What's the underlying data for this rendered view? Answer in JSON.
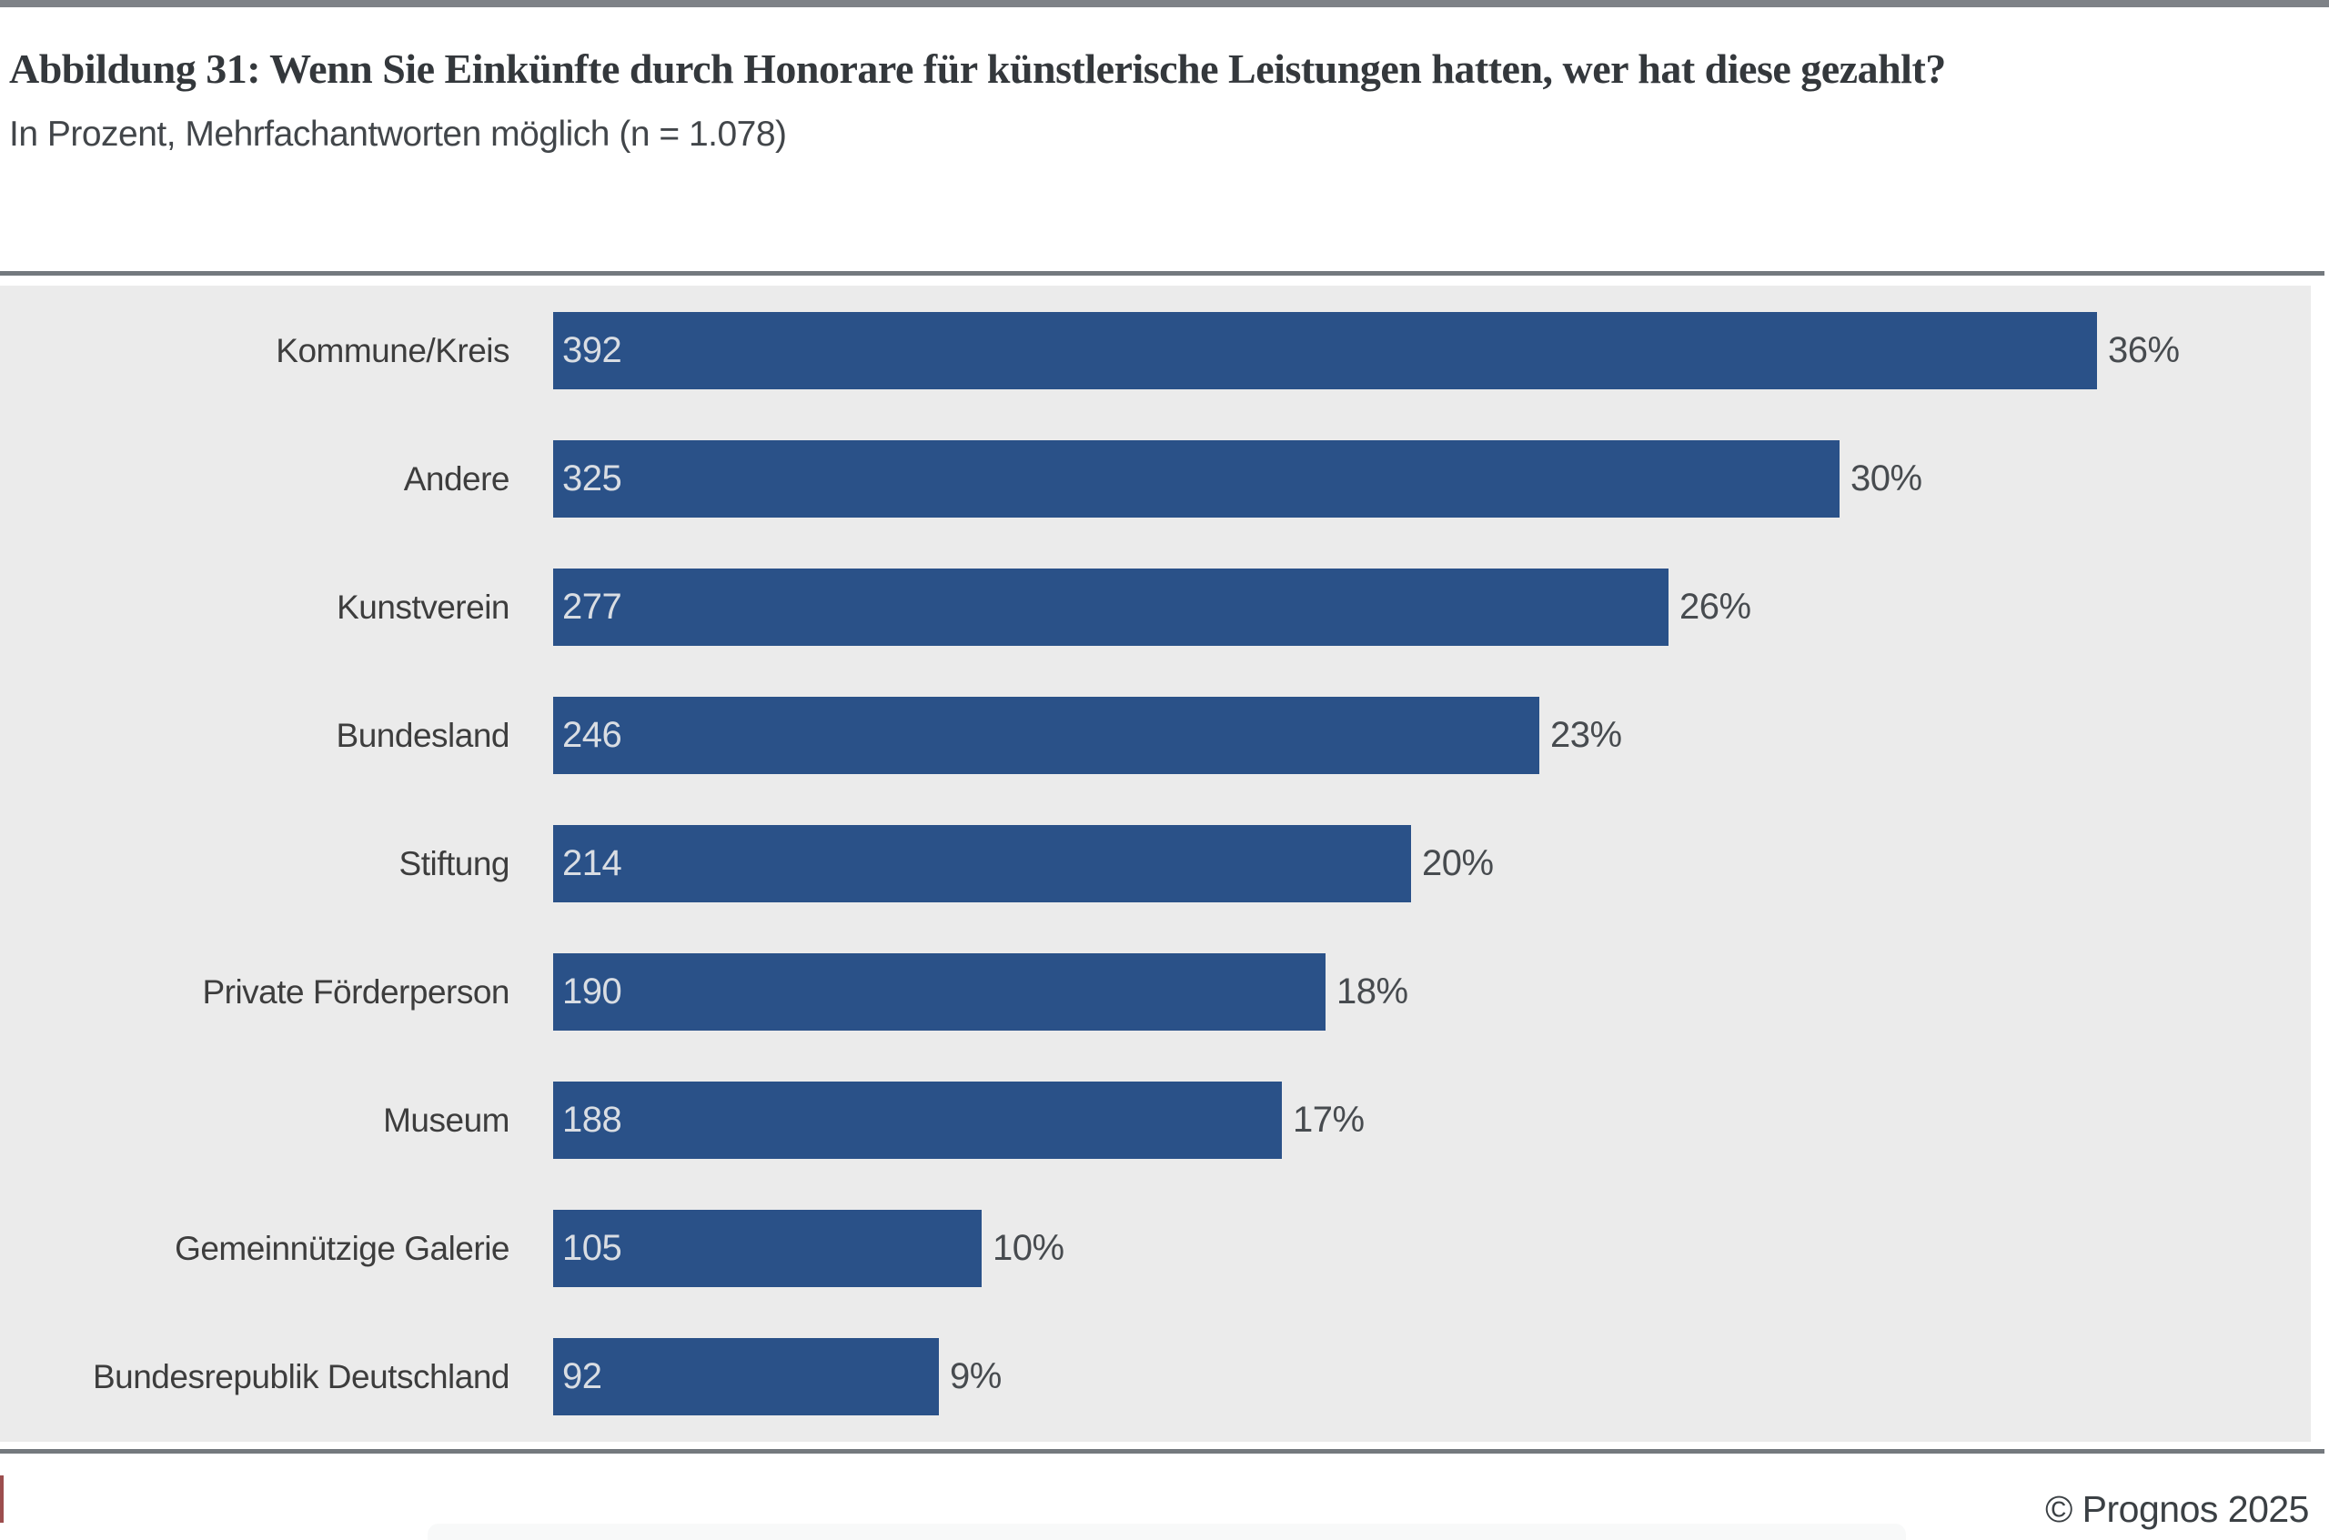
{
  "header": {
    "title": "Abbildung 31: Wenn Sie Einkünfte durch Honorare für künstlerische Leistungen hatten, wer hat diese gezahlt?",
    "subtitle": "In Prozent, Mehrfachantworten möglich (n = 1.078)"
  },
  "chart_data": {
    "type": "bar",
    "orientation": "horizontal",
    "title": "Abbildung 31: Wenn Sie Einkünfte durch Honorare für künstlerische Leistungen hatten, wer hat diese gezahlt?",
    "subtitle": "In Prozent, Mehrfachantworten möglich (n = 1.078)",
    "n": "1.078",
    "categories": [
      "Kommune/Kreis",
      "Andere",
      "Kunstverein",
      "Bundesland",
      "Stiftung",
      "Private Förderperson",
      "Museum",
      "Gemeinnützige Galerie",
      "Bundesrepublik Deutschland"
    ],
    "counts": [
      392,
      325,
      277,
      246,
      214,
      190,
      188,
      105,
      92
    ],
    "percents": [
      36,
      30,
      26,
      23,
      20,
      18,
      17,
      10,
      9
    ],
    "percent_labels": [
      "36%",
      "30%",
      "26%",
      "23%",
      "20%",
      "18%",
      "17%",
      "10%",
      "9%"
    ],
    "value_label_position": "inside-left",
    "percent_label_position": "outside-right",
    "xlim": [
      0,
      41
    ],
    "grid": false,
    "legend": false,
    "bar_color": "#2a5188",
    "bar_value_text_color": "#d9dde3",
    "percent_text_color": "#474b4f",
    "plot_background": "#ebebeb"
  },
  "footer": {
    "copyright": "© Prognos 2025"
  },
  "colors": {
    "accent_bar_blue": "#2a5188",
    "chart_background": "#ebebeb",
    "rule_gray": "#74797e",
    "red_accent": "#9c4e4e"
  }
}
